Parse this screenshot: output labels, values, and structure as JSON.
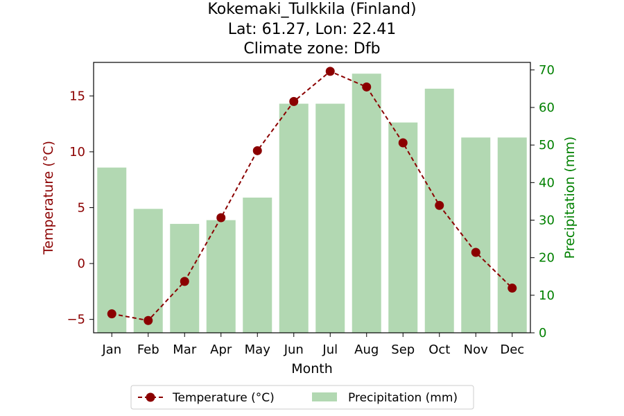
{
  "chart_data": {
    "type": "bar+line",
    "title_lines": [
      "Kokemaki_Tulkkila (Finland)",
      "Lat: 61.27, Lon: 22.41",
      "Climate zone: Dfb"
    ],
    "xlabel": "Month",
    "categories": [
      "Jan",
      "Feb",
      "Mar",
      "Apr",
      "May",
      "Jun",
      "Jul",
      "Aug",
      "Sep",
      "Oct",
      "Nov",
      "Dec"
    ],
    "temperature": {
      "name": "Temperature (°C)",
      "axis_label": "Temperature (°C)",
      "values": [
        -4.5,
        -5.1,
        -1.6,
        4.1,
        10.1,
        14.5,
        17.2,
        15.8,
        10.8,
        5.2,
        1.0,
        -2.2
      ],
      "ylim": [
        -6.2,
        18.0
      ],
      "ticks": [
        -5,
        0,
        5,
        10,
        15
      ],
      "tick_labels": [
        "−5",
        "0",
        "5",
        "10",
        "15"
      ],
      "color": "#8b0000",
      "line_style": "dashed"
    },
    "precipitation": {
      "name": "Precipitation (mm)",
      "axis_label": "Precipitation (mm)",
      "values": [
        44,
        33,
        29,
        30,
        36,
        61,
        61,
        69,
        56,
        65,
        52,
        52
      ],
      "ylim": [
        0,
        72
      ],
      "ticks": [
        0,
        10,
        20,
        30,
        40,
        50,
        60,
        70
      ],
      "tick_labels": [
        "0",
        "10",
        "20",
        "30",
        "40",
        "50",
        "60",
        "70"
      ],
      "color": "#b2d8b2",
      "axis_color": "#008000"
    },
    "legend_position": "bottom-center",
    "grid": false
  }
}
